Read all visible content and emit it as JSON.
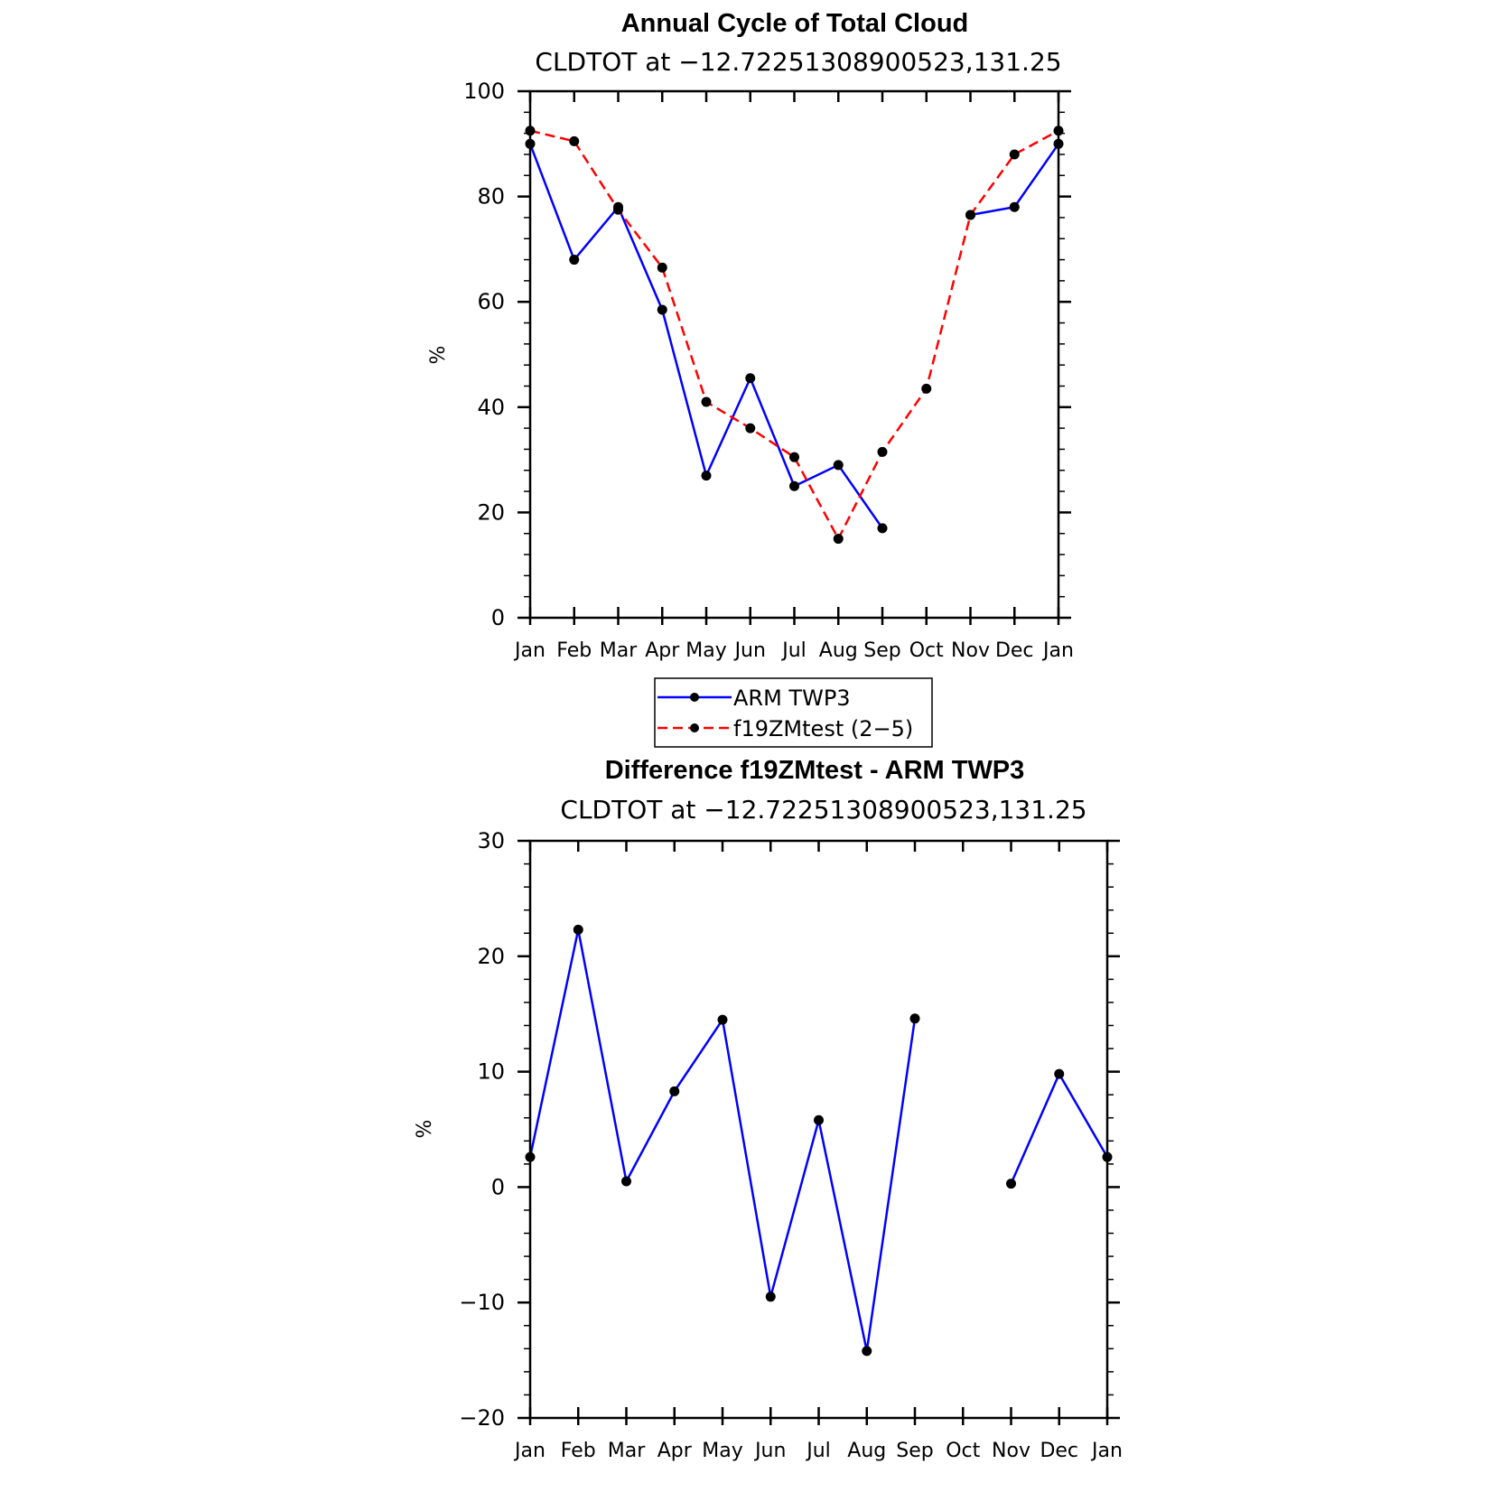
{
  "chart_data": [
    {
      "type": "line",
      "title": "Annual Cycle of Total Cloud",
      "subtitle": "CLDTOT at −12.72251308900523,131.25",
      "xlabel": "",
      "ylabel": "%",
      "categories": [
        "Jan",
        "Feb",
        "Mar",
        "Apr",
        "May",
        "Jun",
        "Jul",
        "Aug",
        "Sep",
        "Oct",
        "Nov",
        "Dec",
        "Jan"
      ],
      "ylim": [
        0,
        100
      ],
      "yticks": [
        0,
        20,
        40,
        60,
        80,
        100
      ],
      "ytick_labels": [
        "0",
        "20",
        "40",
        "60",
        "80",
        "100"
      ],
      "series": [
        {
          "name": "ARM TWP3",
          "color": "#0000ff",
          "dash": "solid",
          "values": [
            90,
            68,
            78,
            58.5,
            27,
            45.5,
            25,
            29,
            17,
            null,
            76.5,
            78,
            90
          ]
        },
        {
          "name": "f19ZMtest (2−5)",
          "color": "#ff0000",
          "dash": "dashed",
          "values": [
            92.5,
            90.5,
            77.5,
            66.5,
            41,
            36,
            30.5,
            15,
            31.5,
            43.5,
            76.5,
            88,
            92.5
          ]
        }
      ],
      "legend": {
        "placement": "below",
        "entries": [
          "ARM TWP3",
          "f19ZMtest (2−5)"
        ]
      }
    },
    {
      "type": "line",
      "title": "Difference f19ZMtest - ARM TWP3",
      "subtitle": "CLDTOT at −12.72251308900523,131.25",
      "xlabel": "",
      "ylabel": "%",
      "categories": [
        "Jan",
        "Feb",
        "Mar",
        "Apr",
        "May",
        "Jun",
        "Jul",
        "Aug",
        "Sep",
        "Oct",
        "Nov",
        "Dec",
        "Jan"
      ],
      "ylim": [
        -20,
        30
      ],
      "yticks": [
        -20,
        -10,
        0,
        10,
        20,
        30
      ],
      "ytick_labels": [
        "−20",
        "−10",
        "0",
        "10",
        "20",
        "30"
      ],
      "series": [
        {
          "name": "Difference",
          "color": "#0000ff",
          "dash": "solid",
          "values": [
            2.6,
            22.3,
            0.5,
            8.3,
            14.5,
            -9.5,
            5.8,
            -14.2,
            14.6,
            null,
            0.3,
            9.8,
            2.6
          ]
        }
      ]
    }
  ]
}
